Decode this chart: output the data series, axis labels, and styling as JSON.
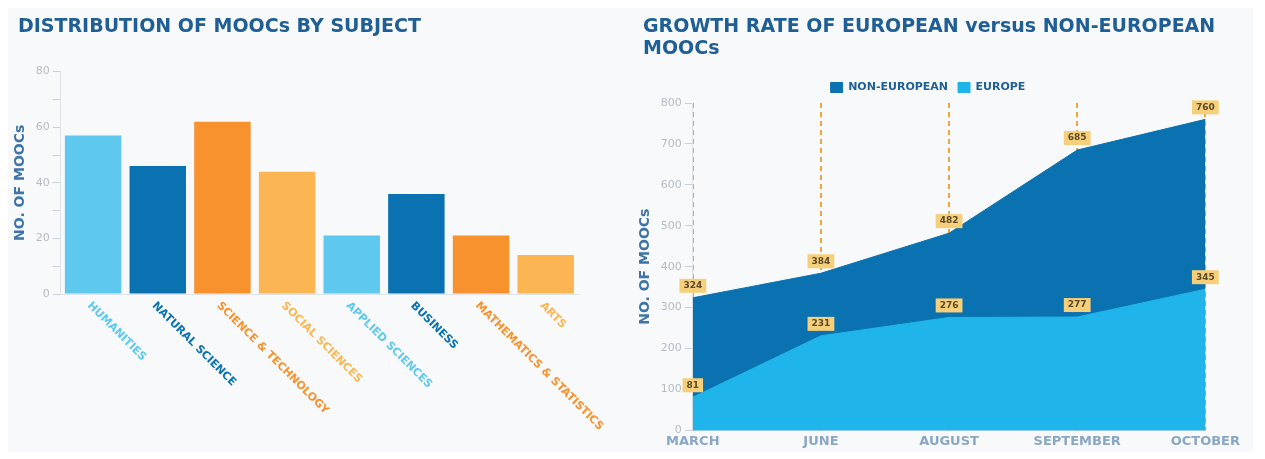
{
  "chart_data": [
    {
      "type": "bar",
      "title": "DISTRIBUTION OF MOOCs BY SUBJECT",
      "ylabel": "NO. OF MOOCs",
      "categories": [
        "HUMANITIES",
        "NATURAL SCIENCE",
        "SCIENCE & TECHNOLOGY",
        "SOCIAL SCIENCES",
        "APPLIED SCIENCES",
        "BUSINESS",
        "MATHEMATICS & STATISTICS",
        "ARTS"
      ],
      "values": [
        57,
        46,
        62,
        44,
        21,
        36,
        21,
        14
      ],
      "colors": [
        "#5ec8ef",
        "#0a72b0",
        "#f7922e",
        "#fbb653",
        "#5ec8ef",
        "#0a72b0",
        "#f7922e",
        "#fbb653"
      ],
      "ylim": [
        0,
        80
      ],
      "yticks": [
        0,
        {
          "value": 10,
          "label": null
        },
        20,
        {
          "value": 30,
          "label": null
        },
        40,
        {
          "value": 50,
          "label": null
        },
        60,
        {
          "value": 70,
          "label": null
        },
        80
      ],
      "grid": false,
      "legend": false
    },
    {
      "type": "area",
      "title": "GROWTH RATE OF EUROPEAN versus NON-EUROPEAN MOOCs",
      "ylabel": "NO. OF MOOCs",
      "categories": [
        "MARCH",
        "JUNE",
        "AUGUST",
        "SEPTEMBER",
        "OCTOBER"
      ],
      "series": [
        {
          "name": "NON-EUROPEAN",
          "color": "#0a72b0",
          "values": [
            324,
            384,
            482,
            685,
            760
          ]
        },
        {
          "name": "EUROPE",
          "color": "#1fb5ea",
          "values": [
            81,
            231,
            276,
            277,
            345
          ]
        }
      ],
      "ylim": [
        0,
        800
      ],
      "yticks": [
        0,
        100,
        200,
        300,
        400,
        500,
        600,
        700,
        800
      ],
      "grid": "x",
      "legend": "top",
      "marker": "none",
      "data_labels": true
    }
  ]
}
